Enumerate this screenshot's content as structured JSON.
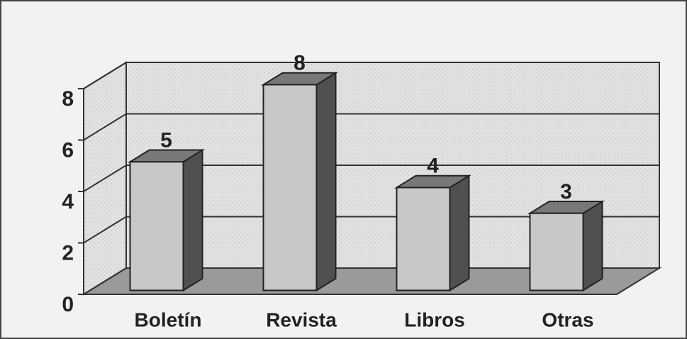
{
  "chart_data": {
    "type": "bar3d",
    "categories": [
      "Boletín",
      "Revista",
      "Libros",
      "Otras"
    ],
    "values": [
      5,
      8,
      4,
      3
    ],
    "color": "#c8c8c8",
    "ylim": [
      0,
      8
    ],
    "yticks": [
      0,
      2,
      4,
      6,
      8
    ],
    "grid": true
  }
}
